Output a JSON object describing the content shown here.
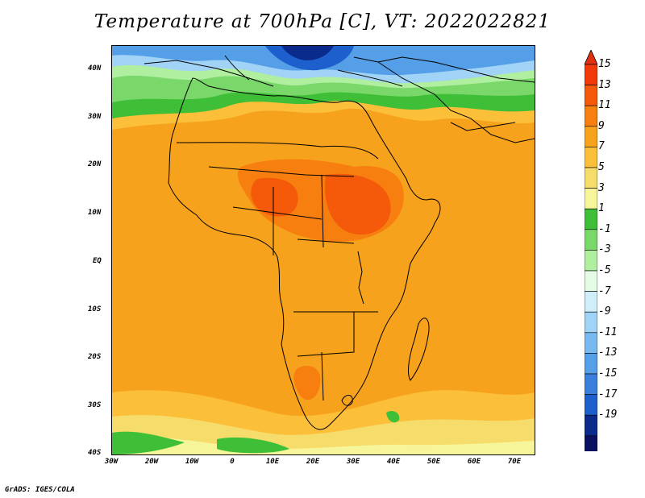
{
  "title": "Temperature at 700hPa [C], VT: 2022022821",
  "credit": "GrADS: IGES/COLA",
  "map": {
    "lat_labels": [
      "40N",
      "30N",
      "20N",
      "10N",
      "EQ",
      "10S",
      "20S",
      "30S",
      "40S"
    ],
    "lon_labels": [
      "30W",
      "20W",
      "10W",
      "0",
      "10E",
      "20E",
      "30E",
      "40E",
      "50E",
      "60E",
      "70E"
    ],
    "lat_range": [
      -40,
      45
    ],
    "lon_range": [
      -30,
      75
    ]
  },
  "colorbar": {
    "labels": [
      "15",
      "13",
      "11",
      "9",
      "7",
      "5",
      "3",
      "1",
      "-1",
      "-3",
      "-5",
      "-7",
      "-9",
      "-11",
      "-13",
      "-15",
      "-17",
      "-19"
    ],
    "colors": [
      "#f03b08",
      "#f55a0a",
      "#f77f10",
      "#f7a21c",
      "#fbbf3a",
      "#f6dc6a",
      "#f7f59a",
      "#3fbf38",
      "#7ad86b",
      "#b0eea0",
      "#e5fbe5",
      "#cfeefa",
      "#a0d3f5",
      "#78b9ef",
      "#559ee8",
      "#3a7fdc",
      "#1d5fcc",
      "#0a2b8c",
      "#0c1060"
    ],
    "top_arrow_color": "#e03010",
    "bottom_arrow_color": "#ccccf2"
  }
}
